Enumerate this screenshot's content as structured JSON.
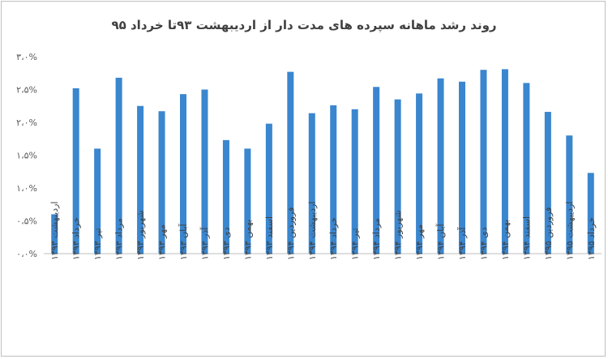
{
  "chart_data": {
    "type": "bar",
    "title": "روند رشد ماهانه سپرده های مدت دار از اردیبهشت ۹۳تا خرداد ۹۵",
    "xlabel": "",
    "ylabel": "",
    "ylim": [
      0,
      3.0
    ],
    "yticks": [
      0,
      0.5,
      1.0,
      1.5,
      2.0,
      2.5,
      3.0
    ],
    "ytick_labels": [
      "۰،۰%",
      "۰،۵%",
      "۱،۰%",
      "۱،۵%",
      "۲،۰%",
      "۲،۵%",
      "۳،۰%"
    ],
    "grid": false,
    "legend": "none",
    "bar_color": "#3a86cf",
    "categories": [
      "اردیبهشت ۱۳۹۳",
      "خرداد ۱۳۹۳",
      "تیر ۱۳۹۳",
      "مرداد ۱۳۹۳",
      "شهریور ۱۳۹۳",
      "مهر ۱۳۹۳",
      "آبان ۱۳۹۳",
      "آذر ۱۳۹۳",
      "دی ۱۳۹۳",
      "بهمن ۱۳۹۳",
      "اسفند ۱۳۹۳",
      "فروردین ۱۳۹۴",
      "اردیبهشت ۱۳۹۴",
      "خرداد ۱۳۹۴",
      "تیر ۱۳۹۴",
      "مرداد ۱۳۹۴",
      "شهریور ۱۳۹۴",
      "مهر ۱۳۹۴",
      "آبان ۱۳۹۴",
      "آذر ۱۳۹۴",
      "دی ۱۳۹۴",
      "بهمن ۱۳۹۴",
      "اسفند ۱۳۹۴",
      "فروردین ۱۳۹۵",
      "اردیبهشت ۱۳۹۵",
      "خرداد ۱۳۹۵"
    ],
    "values": [
      0.6,
      2.52,
      1.6,
      2.68,
      2.25,
      2.17,
      2.43,
      2.5,
      1.73,
      1.6,
      1.98,
      2.77,
      2.14,
      2.26,
      2.2,
      2.54,
      2.35,
      2.44,
      2.67,
      2.62,
      2.8,
      2.81,
      2.6,
      2.16,
      1.8,
      1.23
    ]
  }
}
